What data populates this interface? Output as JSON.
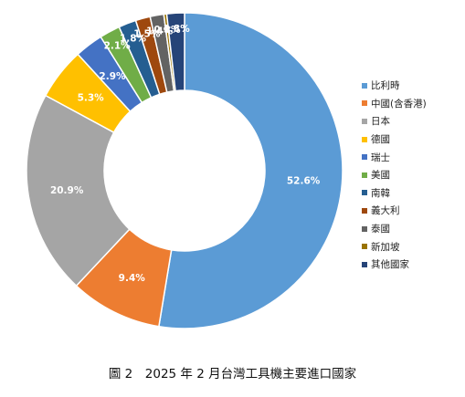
{
  "chart_data": {
    "type": "pie",
    "donut": true,
    "categories": [
      "比利時",
      "中國(含香港)",
      "日本",
      "德國",
      "瑞士",
      "美國",
      "南韓",
      "義大利",
      "泰國",
      "新加坡",
      "其他國家"
    ],
    "values": [
      52.6,
      9.4,
      20.9,
      5.3,
      2.9,
      2.1,
      1.8,
      1.5,
      1.4,
      0.3,
      1.8
    ],
    "labels": [
      "52.6%",
      "9.4%",
      "20.9%",
      "5.3%",
      "2.9%",
      "2.1%",
      "1.8%",
      "1.5%",
      "1.4%",
      "0.3%",
      "1.8%"
    ],
    "colors": [
      "#5B9BD5",
      "#ED7D31",
      "#A5A5A5",
      "#FFC000",
      "#4472C4",
      "#70AD47",
      "#255E91",
      "#9E480E",
      "#636363",
      "#997300",
      "#264478"
    ],
    "legend_position": "right"
  },
  "caption": "圖 2　2025 年 2 月台灣工具機主要進口國家"
}
